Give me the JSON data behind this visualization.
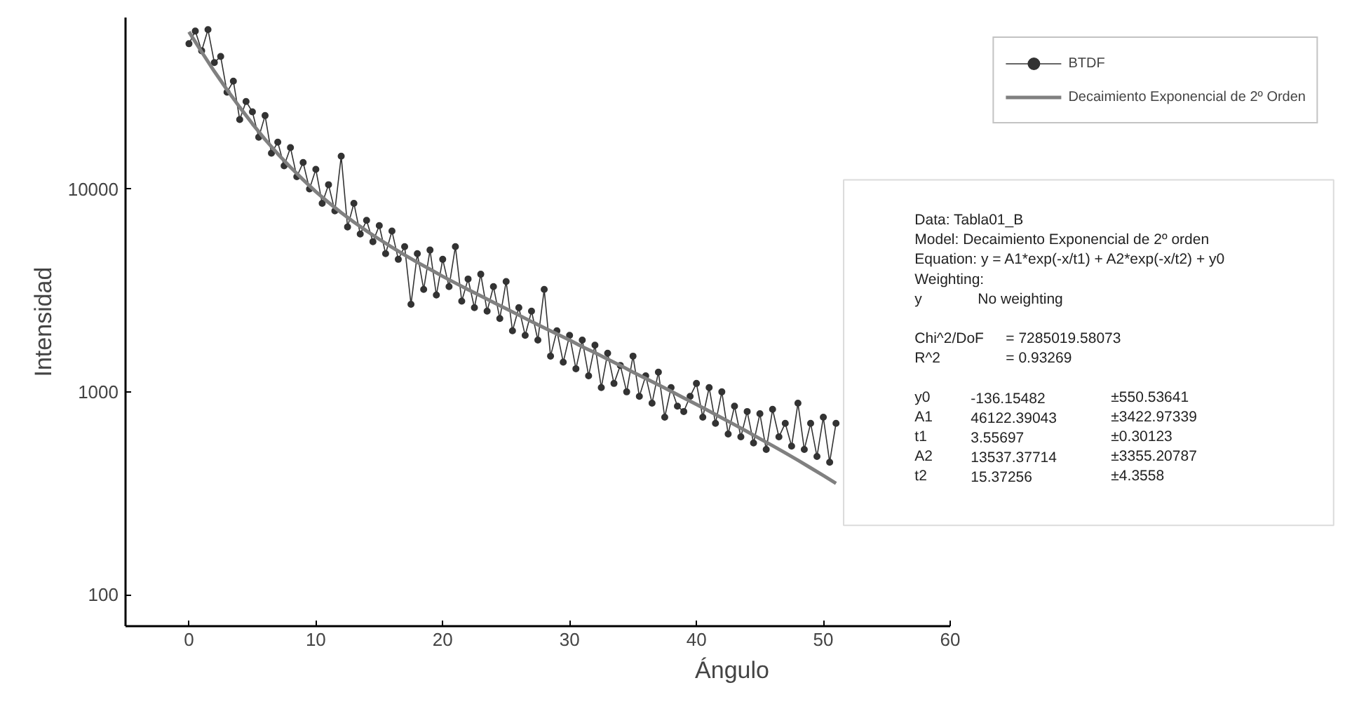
{
  "chart_data": {
    "type": "line",
    "xlabel": "Ángulo",
    "ylabel": "Intensidad",
    "log": "y",
    "xlim": [
      -5,
      60
    ],
    "ylim": [
      70,
      70000
    ],
    "xticks": [
      0,
      10,
      20,
      30,
      40,
      50,
      60
    ],
    "yticks": [
      100,
      1000,
      10000
    ],
    "grid": false,
    "legend": "top right",
    "series": [
      {
        "name": "BTDF",
        "marker": "circle",
        "color": "#333333",
        "x": [
          0,
          0.5,
          1,
          1.5,
          2,
          2.5,
          3,
          3.5,
          4,
          4.5,
          5,
          5.5,
          6,
          6.5,
          7,
          7.5,
          8,
          8.5,
          9,
          9.5,
          10,
          10.5,
          11,
          11.5,
          12,
          12.5,
          13,
          13.5,
          14,
          14.5,
          15,
          15.5,
          16,
          16.5,
          17,
          17.5,
          18,
          18.5,
          19,
          19.5,
          20,
          20.5,
          21,
          21.5,
          22,
          22.5,
          23,
          23.5,
          24,
          24.5,
          25,
          25.5,
          26,
          26.5,
          27,
          27.5,
          28,
          28.5,
          29,
          29.5,
          30,
          30.5,
          31,
          31.5,
          32,
          32.5,
          33,
          33.5,
          34,
          34.5,
          35,
          35.5,
          36,
          36.5,
          37,
          37.5,
          38,
          38.5,
          39,
          39.5,
          40,
          40.5,
          41,
          41.5,
          42,
          42.5,
          43,
          43.5,
          44,
          44.5,
          45,
          45.5,
          46,
          46.5,
          47,
          47.5,
          48,
          48.5,
          49,
          49.5,
          50,
          50.5,
          51
        ],
        "values": [
          52000,
          60000,
          48000,
          61000,
          42000,
          45000,
          30000,
          34000,
          22000,
          27000,
          24000,
          18000,
          23000,
          15000,
          17000,
          13000,
          16000,
          11500,
          13500,
          10000,
          12500,
          8500,
          10500,
          7800,
          14500,
          6500,
          8500,
          6000,
          7000,
          5500,
          6600,
          4800,
          6200,
          4500,
          5200,
          2700,
          4800,
          3200,
          5000,
          3000,
          4500,
          3300,
          5200,
          2800,
          3600,
          2600,
          3800,
          2500,
          3300,
          2300,
          3500,
          2000,
          2600,
          1900,
          2500,
          1800,
          3200,
          1500,
          2000,
          1400,
          1900,
          1300,
          1800,
          1200,
          1700,
          1050,
          1550,
          1100,
          1350,
          1000,
          1500,
          950,
          1200,
          880,
          1250,
          750,
          1050,
          850,
          800,
          950,
          1100,
          750,
          1050,
          700,
          1000,
          620,
          850,
          600,
          800,
          560,
          780,
          520,
          820,
          600,
          700,
          540,
          880,
          520,
          700,
          480,
          750,
          450,
          700
        ]
      },
      {
        "name": "Decaimiento Exponencial de 2º Orden",
        "marker": "none",
        "color": "#808080",
        "x": [
          0,
          1,
          2,
          3,
          4,
          5,
          6,
          7,
          8,
          9,
          10,
          11,
          12,
          13,
          14,
          15,
          16,
          17,
          18,
          19,
          20,
          21,
          22,
          23,
          24,
          25,
          26,
          27,
          28,
          29,
          30,
          31,
          32,
          33,
          34,
          35,
          36,
          37,
          38,
          39,
          40,
          41,
          42,
          43,
          44,
          45,
          46,
          47,
          48,
          49,
          50,
          51
        ],
        "values": [
          59500,
          47400,
          38000,
          30850,
          25300,
          20950,
          17550,
          14900,
          12800,
          11100,
          9700,
          8580,
          7650,
          6870,
          6210,
          5650,
          5160,
          4730,
          4350,
          4020,
          3710,
          3440,
          3190,
          2970,
          2760,
          2570,
          2390,
          2220,
          2070,
          1930,
          1800,
          1670,
          1560,
          1450,
          1350,
          1250,
          1165,
          1083,
          1006,
          934,
          867,
          804,
          744,
          689,
          637,
          588,
          543,
          500,
          460,
          422,
          387,
          354
        ]
      }
    ],
    "annotations": [
      "Data: Tabla01_B",
      "Model: Decaimiento Exponencial de 2º orden",
      "Equation: y = A1*exp(-x/t1) + A2*exp(-x/t2) + y0",
      "Weighting:",
      "y\tNo weighting",
      "Chi^2/DoF\t= 7285019.58073",
      "R^2\t= 0.93269",
      "y0\t-136.15482\t±550.53641",
      "A1\t46122.39043\t±3422.97339",
      "t1\t3.55697\t±0.30123",
      "A2\t13537.37714\t±3355.20787",
      "t2\t15.37256\t±4.3558"
    ]
  }
}
